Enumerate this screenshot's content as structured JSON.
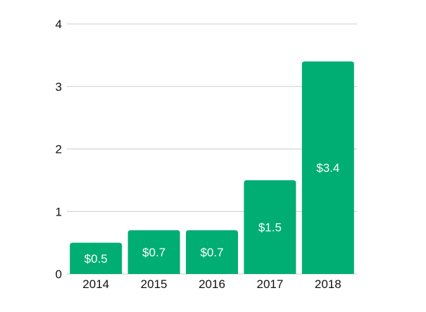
{
  "chart_data": {
    "type": "bar",
    "title": "",
    "xlabel": "",
    "ylabel": "",
    "categories": [
      "2014",
      "2015",
      "2016",
      "2017",
      "2018"
    ],
    "values": [
      0.5,
      0.7,
      0.7,
      1.5,
      3.4
    ],
    "data_labels": [
      "$0.5",
      "$0.7",
      "$0.7",
      "$1.5",
      "$3.4"
    ],
    "y_ticks": [
      "0",
      "1",
      "2",
      "3",
      "4"
    ],
    "y_tick_values": [
      0,
      1,
      2,
      3,
      4
    ],
    "ylim": [
      0,
      4
    ],
    "grid": true,
    "legend": "none",
    "bar_color": "#00ad73"
  }
}
